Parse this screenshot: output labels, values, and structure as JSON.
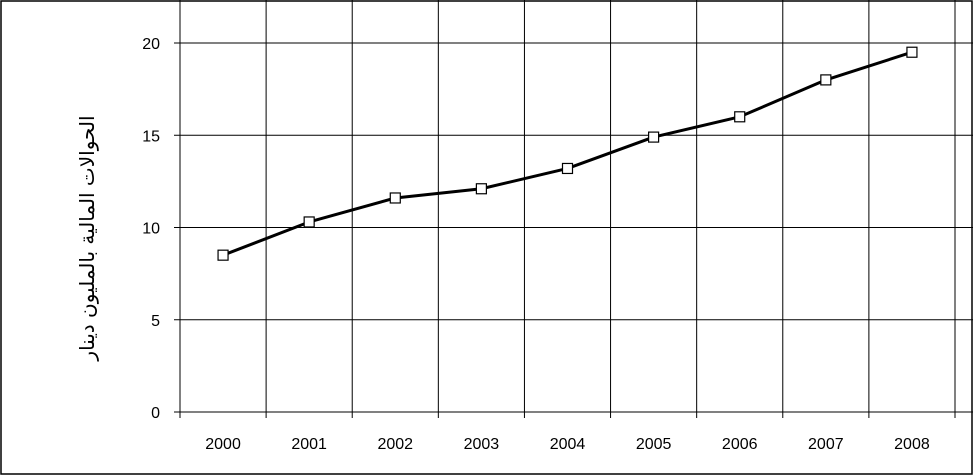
{
  "chart_data": {
    "type": "line",
    "x": [
      "2000",
      "2001",
      "2002",
      "2003",
      "2004",
      "2005",
      "2006",
      "2007",
      "2008"
    ],
    "series": [
      {
        "values": [
          8.5,
          10.3,
          11.6,
          12.1,
          13.2,
          14.9,
          16.0,
          18.0,
          19.5
        ]
      }
    ],
    "ylabel": "الحوالات المالية بالمليون دينار",
    "xlabel": "",
    "ylim": [
      0,
      20
    ],
    "yticks": [
      0,
      5,
      10,
      15,
      20
    ],
    "grid": true,
    "marker": "square"
  }
}
